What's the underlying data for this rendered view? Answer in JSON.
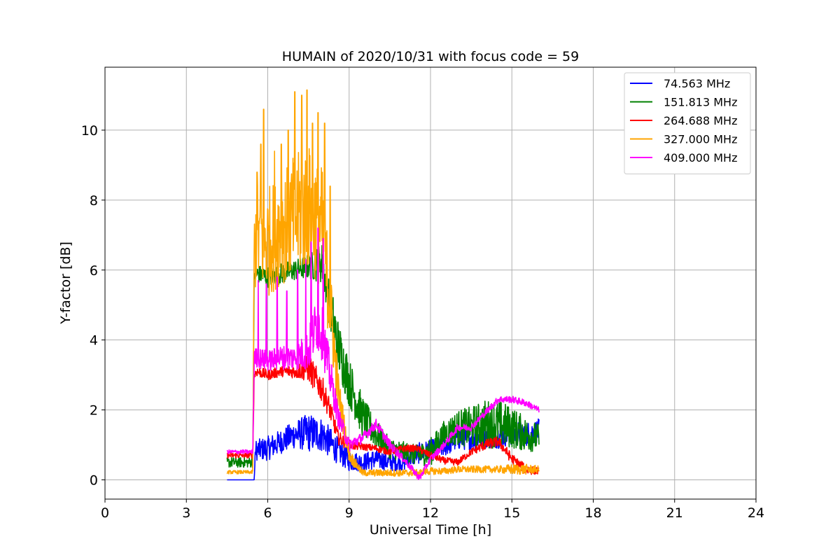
{
  "chart_data": {
    "type": "line",
    "title": "HUMAIN of 2020/10/31 with focus code = 59",
    "xlabel": "Universal Time [h]",
    "ylabel": "Y-factor [dB]",
    "xlim": [
      0,
      24
    ],
    "ylim": [
      -0.55,
      11.8
    ],
    "xticks": [
      0,
      3,
      6,
      9,
      12,
      15,
      18,
      21,
      24
    ],
    "yticks": [
      0,
      2,
      4,
      6,
      8,
      10
    ],
    "grid": true,
    "legend_position": "top-right",
    "series": [
      {
        "name": " 74.563 MHz",
        "color": "#0000ff",
        "x": [
          4.5,
          5.0,
          5.45,
          5.5,
          5.55,
          5.6,
          6.0,
          6.5,
          7.0,
          7.5,
          8.0,
          8.5,
          9.0,
          9.5,
          10.0,
          10.5,
          11.0,
          11.5,
          12.0,
          12.5,
          13.0,
          13.5,
          14.0,
          14.5,
          15.0,
          15.5,
          16.0
        ],
        "values": [
          0.0,
          0.0,
          0.0,
          0.0,
          0.9,
          0.85,
          0.9,
          1.1,
          1.3,
          1.35,
          1.3,
          0.9,
          0.55,
          0.5,
          0.6,
          0.5,
          0.5,
          0.75,
          0.85,
          0.95,
          1.2,
          1.2,
          1.25,
          1.25,
          1.35,
          1.3,
          1.4
        ],
        "noise": [
          0.0,
          0.0,
          0.0,
          0.0,
          0.25,
          0.3,
          0.35,
          0.35,
          0.4,
          0.55,
          0.5,
          0.4,
          0.3,
          0.25,
          0.3,
          0.25,
          0.25,
          0.3,
          0.3,
          0.3,
          0.35,
          0.35,
          0.35,
          0.35,
          0.35,
          0.35,
          0.35
        ]
      },
      {
        "name": "151.813 MHz",
        "color": "#008000",
        "x": [
          4.5,
          5.0,
          5.45,
          5.5,
          5.6,
          6.0,
          6.5,
          7.0,
          7.5,
          8.0,
          8.3,
          8.6,
          9.0,
          9.5,
          10.0,
          10.5,
          11.0,
          11.5,
          12.0,
          12.5,
          13.0,
          13.5,
          14.0,
          14.5,
          15.0,
          15.5,
          16.0
        ],
        "values": [
          0.5,
          0.5,
          0.5,
          5.9,
          5.9,
          5.8,
          5.9,
          6.0,
          6.1,
          6.2,
          5.0,
          3.8,
          2.8,
          1.8,
          1.3,
          0.9,
          0.8,
          0.7,
          0.8,
          1.3,
          1.5,
          1.5,
          1.6,
          1.6,
          1.5,
          1.3,
          1.2
        ],
        "noise": [
          0.15,
          0.15,
          0.15,
          0.25,
          0.25,
          0.3,
          0.3,
          0.3,
          0.35,
          0.6,
          0.7,
          0.8,
          0.7,
          0.6,
          0.4,
          0.3,
          0.3,
          0.3,
          0.4,
          0.4,
          0.5,
          0.6,
          0.7,
          0.7,
          0.6,
          0.5,
          0.4
        ]
      },
      {
        "name": "264.688 MHz",
        "color": "#ff0000",
        "x": [
          4.5,
          5.0,
          5.45,
          5.5,
          5.6,
          6.0,
          6.5,
          7.0,
          7.5,
          8.0,
          8.3,
          8.6,
          9.0,
          9.5,
          10.0,
          10.5,
          11.0,
          11.5,
          12.0,
          12.5,
          13.0,
          13.5,
          14.0,
          14.5,
          15.0,
          15.5,
          16.0
        ],
        "values": [
          0.7,
          0.7,
          0.7,
          3.0,
          3.1,
          3.0,
          3.1,
          3.1,
          3.2,
          2.6,
          2.0,
          1.2,
          1.0,
          0.95,
          0.9,
          0.8,
          0.9,
          0.9,
          0.7,
          0.55,
          0.5,
          0.8,
          1.0,
          1.1,
          0.6,
          0.3,
          0.25
        ],
        "noise": [
          0.08,
          0.08,
          0.08,
          0.15,
          0.15,
          0.15,
          0.15,
          0.2,
          0.4,
          0.4,
          0.3,
          0.2,
          0.15,
          0.1,
          0.1,
          0.1,
          0.1,
          0.1,
          0.1,
          0.1,
          0.1,
          0.1,
          0.15,
          0.15,
          0.15,
          0.15,
          0.1
        ]
      },
      {
        "name": "327.000 MHz",
        "color": "#ffa500",
        "x": [
          4.5,
          5.0,
          5.45,
          5.5,
          5.6,
          6.0,
          6.5,
          7.0,
          7.5,
          8.0,
          8.3,
          8.6,
          9.0,
          9.5,
          10.0,
          10.5,
          11.0,
          11.5,
          12.0,
          12.5,
          13.0,
          13.5,
          14.0,
          14.5,
          15.0,
          15.5,
          16.0
        ],
        "values": [
          0.22,
          0.22,
          0.22,
          6.5,
          7.0,
          6.8,
          7.2,
          7.5,
          7.8,
          7.2,
          5.0,
          2.5,
          0.7,
          0.2,
          0.2,
          0.2,
          0.2,
          0.2,
          0.25,
          0.25,
          0.3,
          0.3,
          0.3,
          0.3,
          0.3,
          0.3,
          0.3
        ],
        "noise": [
          0.05,
          0.05,
          0.05,
          1.2,
          1.5,
          1.6,
          1.6,
          1.8,
          1.8,
          1.8,
          1.2,
          0.6,
          0.2,
          0.1,
          0.1,
          0.1,
          0.1,
          0.1,
          0.1,
          0.1,
          0.1,
          0.1,
          0.1,
          0.1,
          0.15,
          0.15,
          0.1
        ],
        "spikes": [
          [
            5.6,
            8.8
          ],
          [
            5.75,
            9.6
          ],
          [
            5.85,
            10.6
          ],
          [
            6.25,
            9.4
          ],
          [
            6.5,
            9.6
          ],
          [
            6.75,
            10.0
          ],
          [
            7.0,
            11.1
          ],
          [
            7.25,
            11.0
          ],
          [
            7.45,
            11.15
          ],
          [
            7.65,
            10.2
          ],
          [
            7.85,
            10.5
          ],
          [
            8.1,
            10.2
          ],
          [
            8.3,
            8.4
          ]
        ]
      },
      {
        "name": "409.000 MHz",
        "color": "#ff00ff",
        "x": [
          4.5,
          5.0,
          5.45,
          5.5,
          5.6,
          6.0,
          6.5,
          7.0,
          7.5,
          7.8,
          8.0,
          8.3,
          8.6,
          9.0,
          9.5,
          10.0,
          10.5,
          11.0,
          11.6,
          12.0,
          12.5,
          13.0,
          13.5,
          14.0,
          14.5,
          15.0,
          15.5,
          16.0
        ],
        "values": [
          0.8,
          0.8,
          0.8,
          3.5,
          3.5,
          3.4,
          3.5,
          3.5,
          3.7,
          4.5,
          4.2,
          3.0,
          1.8,
          1.0,
          1.2,
          1.6,
          1.0,
          0.6,
          0.05,
          0.6,
          1.0,
          1.5,
          1.5,
          1.9,
          2.3,
          2.3,
          2.2,
          2.0
        ],
        "noise": [
          0.06,
          0.06,
          0.06,
          0.25,
          0.3,
          0.3,
          0.35,
          0.35,
          0.6,
          0.8,
          0.8,
          0.6,
          0.3,
          0.2,
          0.15,
          0.15,
          0.15,
          0.1,
          0.1,
          0.1,
          0.1,
          0.1,
          0.1,
          0.1,
          0.1,
          0.1,
          0.1,
          0.08
        ],
        "spikes": [
          [
            5.65,
            5.7
          ],
          [
            5.95,
            5.6
          ],
          [
            6.35,
            5.8
          ],
          [
            6.7,
            5.4
          ],
          [
            7.1,
            6.0
          ],
          [
            7.4,
            6.3
          ],
          [
            7.6,
            6.8
          ],
          [
            7.85,
            7.2
          ],
          [
            8.05,
            6.9
          ]
        ]
      }
    ]
  }
}
